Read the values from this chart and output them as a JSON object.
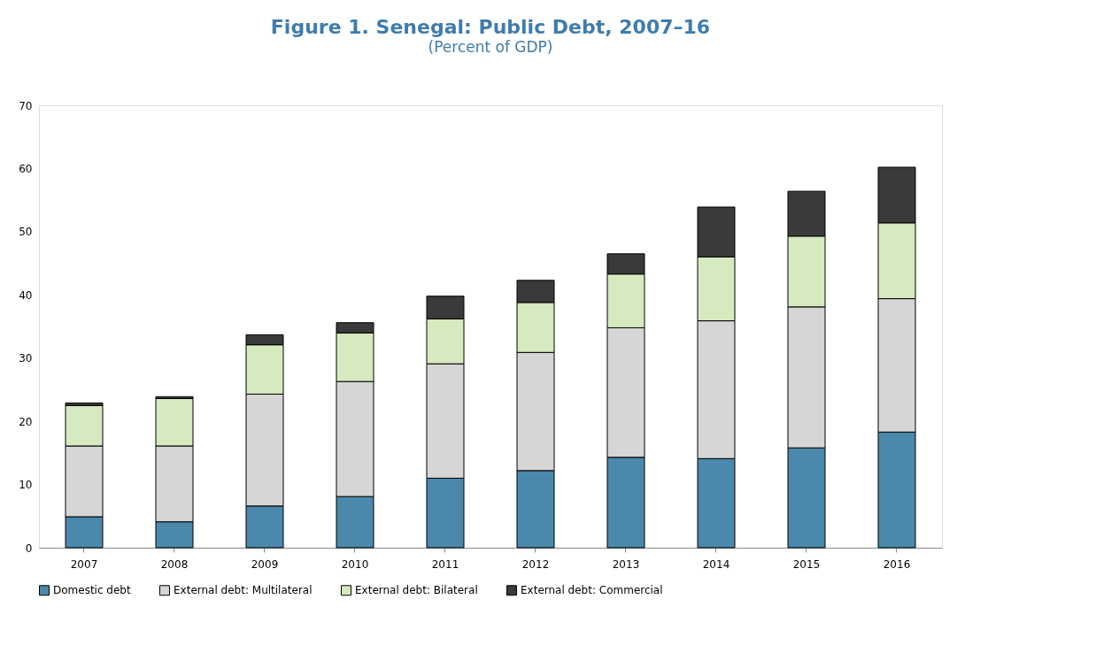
{
  "chart_data": {
    "type": "bar",
    "title": "Figure 1. Senegal: Public Debt, 2007–16",
    "subtitle": "(Percent of GDP)",
    "stacked": true,
    "categories": [
      "2007",
      "2008",
      "2009",
      "2010",
      "2011",
      "2012",
      "2013",
      "2014",
      "2015",
      "2016"
    ],
    "series": [
      {
        "name": "Domestic debt",
        "color": "#4a89ab",
        "values": [
          4.9,
          4.1,
          6.6,
          8.1,
          11.0,
          12.2,
          14.3,
          14.1,
          15.8,
          18.3
        ]
      },
      {
        "name": "External debt: Multilateral",
        "color": "#d6d6d6",
        "values": [
          11.2,
          12.0,
          17.7,
          18.2,
          18.1,
          18.7,
          20.5,
          21.8,
          22.3,
          21.1
        ]
      },
      {
        "name": "External debt: Bilateral",
        "color": "#d5eabf",
        "values": [
          6.4,
          7.5,
          7.8,
          7.7,
          7.1,
          7.9,
          8.5,
          10.1,
          11.2,
          12.0
        ]
      },
      {
        "name": "External debt: Commercial",
        "color": "#3a3a3a",
        "values": [
          0.4,
          0.3,
          1.6,
          1.6,
          3.6,
          3.5,
          3.2,
          7.9,
          7.1,
          8.8
        ]
      }
    ],
    "ylim": [
      0,
      70
    ],
    "yticks": [
      0,
      10,
      20,
      30,
      40,
      50,
      60,
      70
    ],
    "grid": false,
    "legend": "bottom"
  }
}
